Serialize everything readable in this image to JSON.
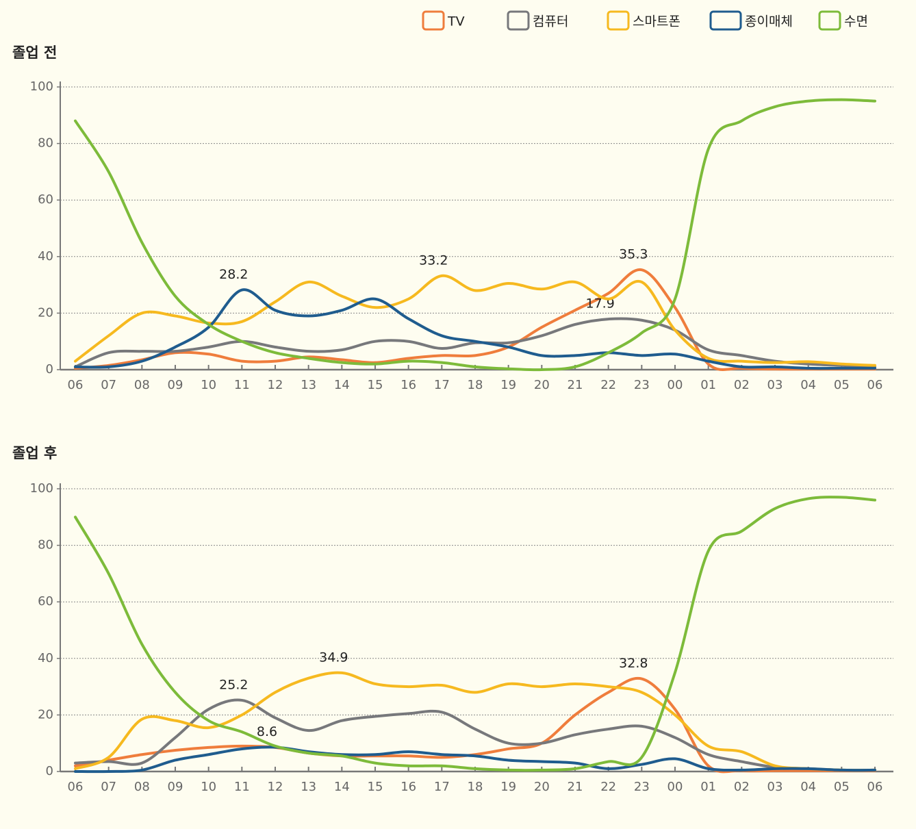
{
  "chart_data": [
    {
      "type": "line",
      "title": "졸업 전",
      "categories": [
        "06",
        "07",
        "08",
        "09",
        "10",
        "11",
        "12",
        "13",
        "14",
        "15",
        "16",
        "17",
        "18",
        "19",
        "20",
        "21",
        "22",
        "23",
        "00",
        "01",
        "02",
        "03",
        "04",
        "05",
        "06"
      ],
      "ylim": [
        0,
        100
      ],
      "yticks": [
        0,
        20,
        40,
        60,
        80,
        100
      ],
      "grid": true,
      "legend": "top-right",
      "series": [
        {
          "name": "TV",
          "color": "#ef7d3c",
          "values": [
            0.5,
            1.5,
            3.5,
            6,
            5.5,
            3,
            3,
            4.5,
            3.5,
            2.5,
            4,
            5,
            5,
            8,
            15,
            21,
            27,
            35.3,
            22,
            2,
            0.5,
            0.2,
            0.2,
            0.2,
            0.2
          ],
          "value_labels": [
            null,
            null,
            null,
            null,
            null,
            null,
            null,
            null,
            null,
            null,
            null,
            null,
            null,
            null,
            null,
            null,
            null,
            "35.3",
            null,
            null,
            null,
            null,
            null,
            null,
            null
          ]
        },
        {
          "name": "컴퓨터",
          "color": "#77787b",
          "values": [
            1,
            6,
            6.5,
            6.5,
            8,
            10,
            8,
            6.5,
            7,
            10,
            10,
            7.5,
            9.5,
            9.5,
            12,
            16,
            17.9,
            17.5,
            14,
            7,
            5,
            3,
            2,
            1.5,
            1
          ],
          "value_labels": [
            null,
            null,
            null,
            null,
            null,
            null,
            null,
            null,
            null,
            null,
            null,
            null,
            null,
            null,
            null,
            null,
            "17.9",
            null,
            null,
            null,
            null,
            null,
            null,
            null,
            null
          ]
        },
        {
          "name": "스마트폰",
          "color": "#f6b91f",
          "values": [
            3,
            12,
            20,
            19,
            16.5,
            17,
            24,
            31,
            26,
            22,
            25,
            33.2,
            28,
            30.5,
            28.5,
            31,
            25,
            31,
            14,
            4,
            3,
            2.5,
            2.8,
            2,
            1.5
          ],
          "value_labels": [
            null,
            null,
            null,
            null,
            null,
            null,
            null,
            null,
            null,
            null,
            null,
            "33.2",
            null,
            null,
            null,
            null,
            null,
            null,
            null,
            null,
            null,
            null,
            null,
            null,
            null
          ]
        },
        {
          "name": "종이매체",
          "color": "#1f5c8e",
          "values": [
            1,
            1,
            3,
            8,
            15,
            28.2,
            21,
            19,
            21,
            25,
            18,
            12,
            10,
            8,
            5,
            5,
            6,
            5,
            5.5,
            3,
            1,
            1,
            0.5,
            0.5,
            0.5
          ],
          "value_labels": [
            null,
            null,
            null,
            null,
            null,
            "28.2",
            null,
            null,
            null,
            null,
            null,
            null,
            null,
            null,
            null,
            null,
            null,
            null,
            null,
            null,
            null,
            null,
            null,
            null,
            null
          ]
        },
        {
          "name": "수면",
          "color": "#7dbb3a",
          "values": [
            88,
            70,
            45,
            26,
            16,
            10,
            6,
            4,
            2.5,
            2,
            3,
            2.5,
            1,
            0.3,
            0,
            1,
            6,
            13,
            25,
            78,
            88,
            93,
            95,
            95.5,
            95
          ]
        }
      ]
    },
    {
      "type": "line",
      "title": "졸업 후",
      "categories": [
        "06",
        "07",
        "08",
        "09",
        "10",
        "11",
        "12",
        "13",
        "14",
        "15",
        "16",
        "17",
        "18",
        "19",
        "20",
        "21",
        "22",
        "23",
        "00",
        "01",
        "02",
        "03",
        "04",
        "05",
        "06"
      ],
      "ylim": [
        0,
        100
      ],
      "yticks": [
        0,
        20,
        40,
        60,
        80,
        100
      ],
      "grid": true,
      "series": [
        {
          "name": "TV",
          "color": "#ef7d3c",
          "values": [
            2,
            4,
            6,
            7.5,
            8.5,
            9,
            8.5,
            6.5,
            5.5,
            5.5,
            5.5,
            5,
            6,
            8,
            10,
            20,
            28,
            32.8,
            22,
            2,
            0.3,
            0.3,
            0.3,
            0.3,
            0.3
          ],
          "value_labels": [
            null,
            null,
            null,
            null,
            null,
            null,
            null,
            null,
            null,
            null,
            null,
            null,
            null,
            null,
            null,
            null,
            null,
            "32.8",
            null,
            null,
            null,
            null,
            null,
            null,
            null
          ]
        },
        {
          "name": "컴퓨터",
          "color": "#77787b",
          "values": [
            3,
            3.5,
            3,
            12,
            22,
            25.2,
            19,
            14.5,
            18,
            19.5,
            20.5,
            21,
            15,
            10,
            10,
            13,
            15,
            16,
            12,
            6,
            3.5,
            1.5,
            1,
            0.5,
            0.5
          ],
          "value_labels": [
            null,
            null,
            null,
            null,
            null,
            "25.2",
            null,
            null,
            null,
            null,
            null,
            null,
            null,
            null,
            null,
            null,
            null,
            null,
            null,
            null,
            null,
            null,
            null,
            null,
            null
          ]
        },
        {
          "name": "스마트폰",
          "color": "#f6b91f",
          "values": [
            1,
            5,
            18.5,
            18,
            15.5,
            20,
            28,
            33,
            34.9,
            31,
            30,
            30.5,
            28,
            31,
            30,
            31,
            30,
            28,
            20,
            9,
            7,
            2,
            1,
            0.5,
            0.5
          ],
          "value_labels": [
            null,
            null,
            null,
            null,
            null,
            null,
            null,
            null,
            "34.9",
            null,
            null,
            null,
            null,
            null,
            null,
            null,
            null,
            null,
            null,
            null,
            null,
            null,
            null,
            null,
            null
          ]
        },
        {
          "name": "종이매체",
          "color": "#1f5c8e",
          "values": [
            0,
            0,
            0.5,
            4,
            6,
            8,
            8.6,
            7,
            6,
            6,
            7,
            6,
            5.5,
            4,
            3.5,
            3,
            1,
            2.5,
            4.5,
            1,
            0.5,
            1,
            1,
            0.5,
            0.5
          ],
          "value_labels": [
            null,
            null,
            null,
            null,
            null,
            null,
            "8.6",
            null,
            null,
            null,
            null,
            null,
            null,
            null,
            null,
            null,
            null,
            null,
            null,
            null,
            null,
            null,
            null,
            null,
            null
          ]
        },
        {
          "name": "수면",
          "color": "#7dbb3a",
          "values": [
            90,
            70,
            45,
            28,
            18,
            14,
            9,
            6.5,
            5.5,
            3,
            2,
            2,
            1,
            0.5,
            0.5,
            1,
            3.5,
            5,
            35,
            78,
            85,
            93,
            96.5,
            97,
            96
          ]
        }
      ]
    }
  ]
}
